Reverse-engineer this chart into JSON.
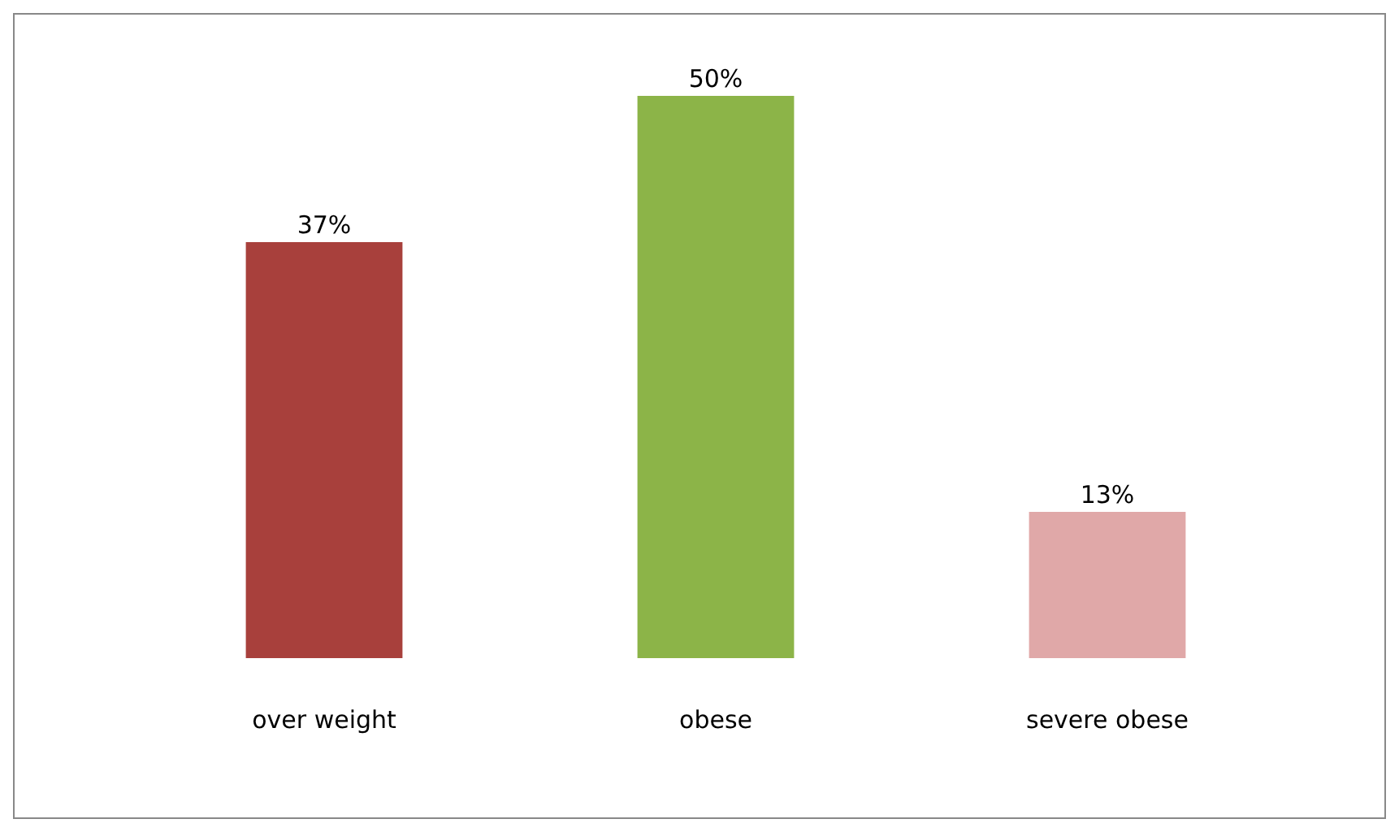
{
  "chart_data": {
    "type": "bar",
    "categories": [
      "over weight",
      "obese",
      "severe obese"
    ],
    "values": [
      37,
      50,
      13
    ],
    "colors": [
      "#a8403c",
      "#8cb448",
      "#e0a8a8"
    ],
    "value_labels": [
      "37%",
      "50%",
      "13%"
    ],
    "grid": false,
    "legend": false
  }
}
